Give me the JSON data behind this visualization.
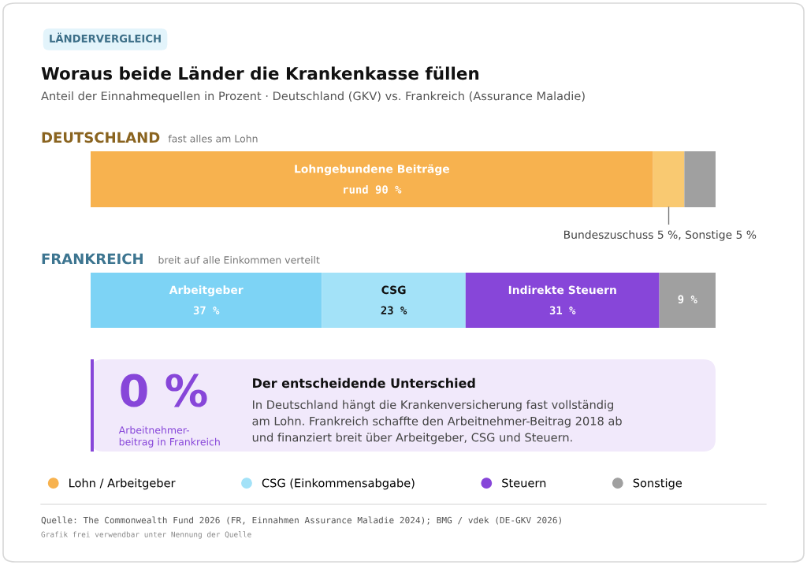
{
  "chart_data": [
    {
      "type": "other",
      "title": "Woraus beide Länder die Krankenkasse füllen",
      "subtitle": "Anteil der Einnahmequellen in Prozent · Deutschland (GKV) vs. Frankreich (Assurance Maladie)",
      "annotations": [
        "LÄNDERVERGLEICH"
      ]
    },
    {
      "type": "bar",
      "orientation": "horizontal",
      "stacked": true,
      "title": "DEUTSCHLAND",
      "subtitle": "fast alles am Lohn",
      "categories": [
        null
      ],
      "xlim": [
        0,
        100
      ],
      "tick_labels": false,
      "series": [
        {
          "name": "Lohngebundene Beiträge",
          "color": "#f7b24f",
          "values": [
            90
          ],
          "value_labels": [
            "rund 90 %"
          ]
        },
        {
          "color": "#f9c971",
          "values": [
            5
          ]
        },
        {
          "color": "#a0a0a0",
          "values": [
            5
          ]
        }
      ],
      "annotations": [
        "Bundeszuschuss 5 %, Sonstige 5 %"
      ]
    },
    {
      "type": "bar",
      "orientation": "horizontal",
      "stacked": true,
      "title": "FRANKREICH",
      "subtitle": "breit auf alle Einkommen verteilt",
      "categories": [
        null
      ],
      "xlim": [
        0,
        100
      ],
      "tick_labels": false,
      "series": [
        {
          "name": "Arbeitgeber",
          "color": "#7dd3f5",
          "values": [
            37
          ],
          "value_labels": [
            "37 %"
          ]
        },
        {
          "name": "CSG",
          "color": "#a3e2f8",
          "values": [
            23
          ],
          "value_labels": [
            "23 %"
          ]
        },
        {
          "name": "Indirekte Steuern",
          "color": "#8746d9",
          "values": [
            31
          ],
          "value_labels": [
            "31 %"
          ]
        },
        {
          "color": "#a0a0a0",
          "values": [
            9
          ],
          "value_labels": [
            "9 %"
          ]
        }
      ]
    },
    {
      "type": "other",
      "title": "Der entscheidende Unterschied",
      "annotations": [
        "0 %",
        "Arbeitnehmer-\nbeitrag in Frankreich",
        "In Deutschland hängt die Krankenversicherung fast vollständig\nam Lohn. Frankreich schaffte den Arbeitnehmer-Beitrag 2018 ab\nund finanziert breit über Arbeitgeber, CSG und Steuern."
      ]
    },
    {
      "type": "other",
      "legend": "bottom",
      "series": [
        {
          "name": "Lohn / Arbeitgeber",
          "color": "#f7b24f"
        },
        {
          "name": "CSG (Einkommensabgabe)",
          "color": "#a3e2f8"
        },
        {
          "name": "Steuern",
          "color": "#8746d9"
        },
        {
          "name": "Sonstige",
          "color": "#a0a0a0"
        }
      ],
      "annotations": [
        "Quelle: The Commonwealth Fund 2026 (FR, Einnahmen Assurance Maladie 2024); BMG / vdek (DE-GKV 2026)",
        "Grafik frei verwendbar unter Nennung der Quelle"
      ]
    }
  ]
}
